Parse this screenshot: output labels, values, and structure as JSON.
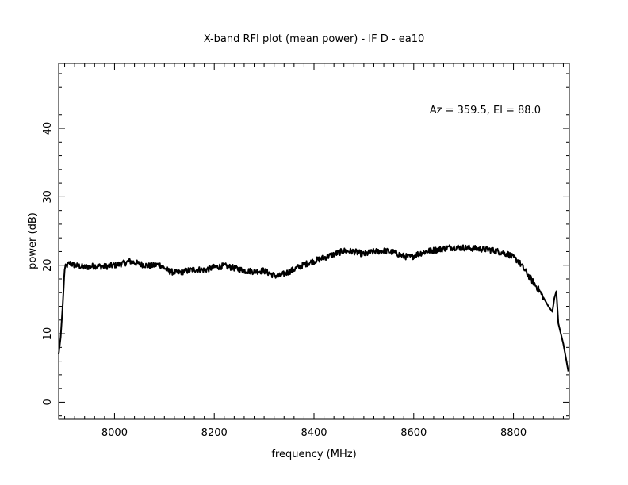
{
  "chart_data": {
    "type": "line",
    "title": "X-band RFI plot (mean power) - IF D - ea10",
    "xlabel": "frequency (MHz)",
    "ylabel": "power (dB)",
    "annotation": "Az = 359.5, El = 88.0",
    "xlim": [
      7888,
      8912
    ],
    "ylim": [
      -2.5,
      49.5
    ],
    "x_ticks": [
      8000,
      8200,
      8400,
      8600,
      8800
    ],
    "x_tick_labels": [
      "8000",
      "8200",
      "8400",
      "8600",
      "8800"
    ],
    "y_ticks": [
      0,
      10,
      20,
      30,
      40
    ],
    "y_tick_labels": [
      "0",
      "10",
      "20",
      "30",
      "40"
    ],
    "grid": false,
    "series": [
      {
        "color": "#000000",
        "x": [
          7888,
          7892,
          7896,
          7900,
          7905,
          7910,
          7920,
          7940,
          7960,
          7980,
          8000,
          8020,
          8030,
          8050,
          8070,
          8090,
          8100,
          8110,
          8125,
          8140,
          8160,
          8180,
          8200,
          8220,
          8240,
          8260,
          8280,
          8300,
          8320,
          8330,
          8345,
          8360,
          8380,
          8400,
          8420,
          8440,
          8460,
          8480,
          8500,
          8520,
          8540,
          8560,
          8580,
          8595,
          8610,
          8630,
          8650,
          8670,
          8690,
          8710,
          8730,
          8750,
          8770,
          8790,
          8810,
          8830,
          8850,
          8860,
          8870,
          8878,
          8882,
          8886,
          8890,
          8900,
          8910
        ],
        "y": [
          7,
          9.5,
          14,
          19.5,
          20,
          20.3,
          20.0,
          19.7,
          19.9,
          19.8,
          20.0,
          20.3,
          20.6,
          20.2,
          19.9,
          20.1,
          19.6,
          19.1,
          18.9,
          19.1,
          19.4,
          19.3,
          19.7,
          19.9,
          19.6,
          19.2,
          19.1,
          19.2,
          18.5,
          18.4,
          18.9,
          19.4,
          20.1,
          20.6,
          21.1,
          21.6,
          22.1,
          22.0,
          21.6,
          22.0,
          22.1,
          21.9,
          21.3,
          21.2,
          21.7,
          22.1,
          22.3,
          22.6,
          22.6,
          22.5,
          22.4,
          22.3,
          22.0,
          21.6,
          20.6,
          18.5,
          16.5,
          15.3,
          14.0,
          13.2,
          15.2,
          16.2,
          11.5,
          8.5,
          4.5
        ]
      }
    ]
  }
}
